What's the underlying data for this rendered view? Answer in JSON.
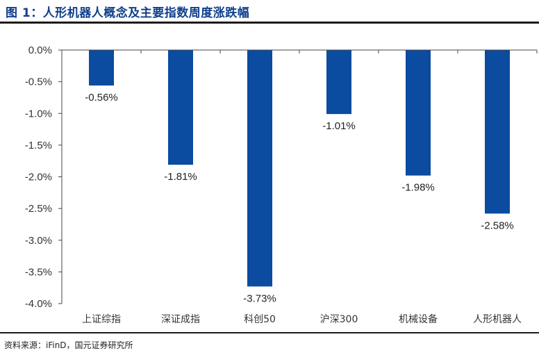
{
  "figure": {
    "title": "图 1：人形机器人概念及主要指数周度涨跌幅",
    "source": "资料来源：iFinD，国元证券研究所"
  },
  "colors": {
    "title": "#0f3f8c",
    "bar": "#0b4ba0",
    "axis": "#444444"
  },
  "chart_data": {
    "type": "bar",
    "categories": [
      "上证综指",
      "深证成指",
      "科创50",
      "沪深300",
      "机械设备",
      "人形机器人"
    ],
    "values": [
      -0.56,
      -1.81,
      -3.73,
      -1.01,
      -1.98,
      -2.58
    ],
    "value_labels": [
      "-0.56%",
      "-1.81%",
      "-3.73%",
      "-1.01%",
      "-1.98%",
      "-2.58%"
    ],
    "y_ticks": [
      0.0,
      -0.5,
      -1.0,
      -1.5,
      -2.0,
      -2.5,
      -3.0,
      -3.5,
      -4.0
    ],
    "y_tick_labels": [
      "0.0%",
      "-0.5%",
      "-1.0%",
      "-1.5%",
      "-2.0%",
      "-2.5%",
      "-3.0%",
      "-3.5%",
      "-4.0%"
    ],
    "ylim": [
      -4.0,
      0.0
    ],
    "title": "",
    "xlabel": "",
    "ylabel": "",
    "grid": false,
    "legend": "none"
  }
}
